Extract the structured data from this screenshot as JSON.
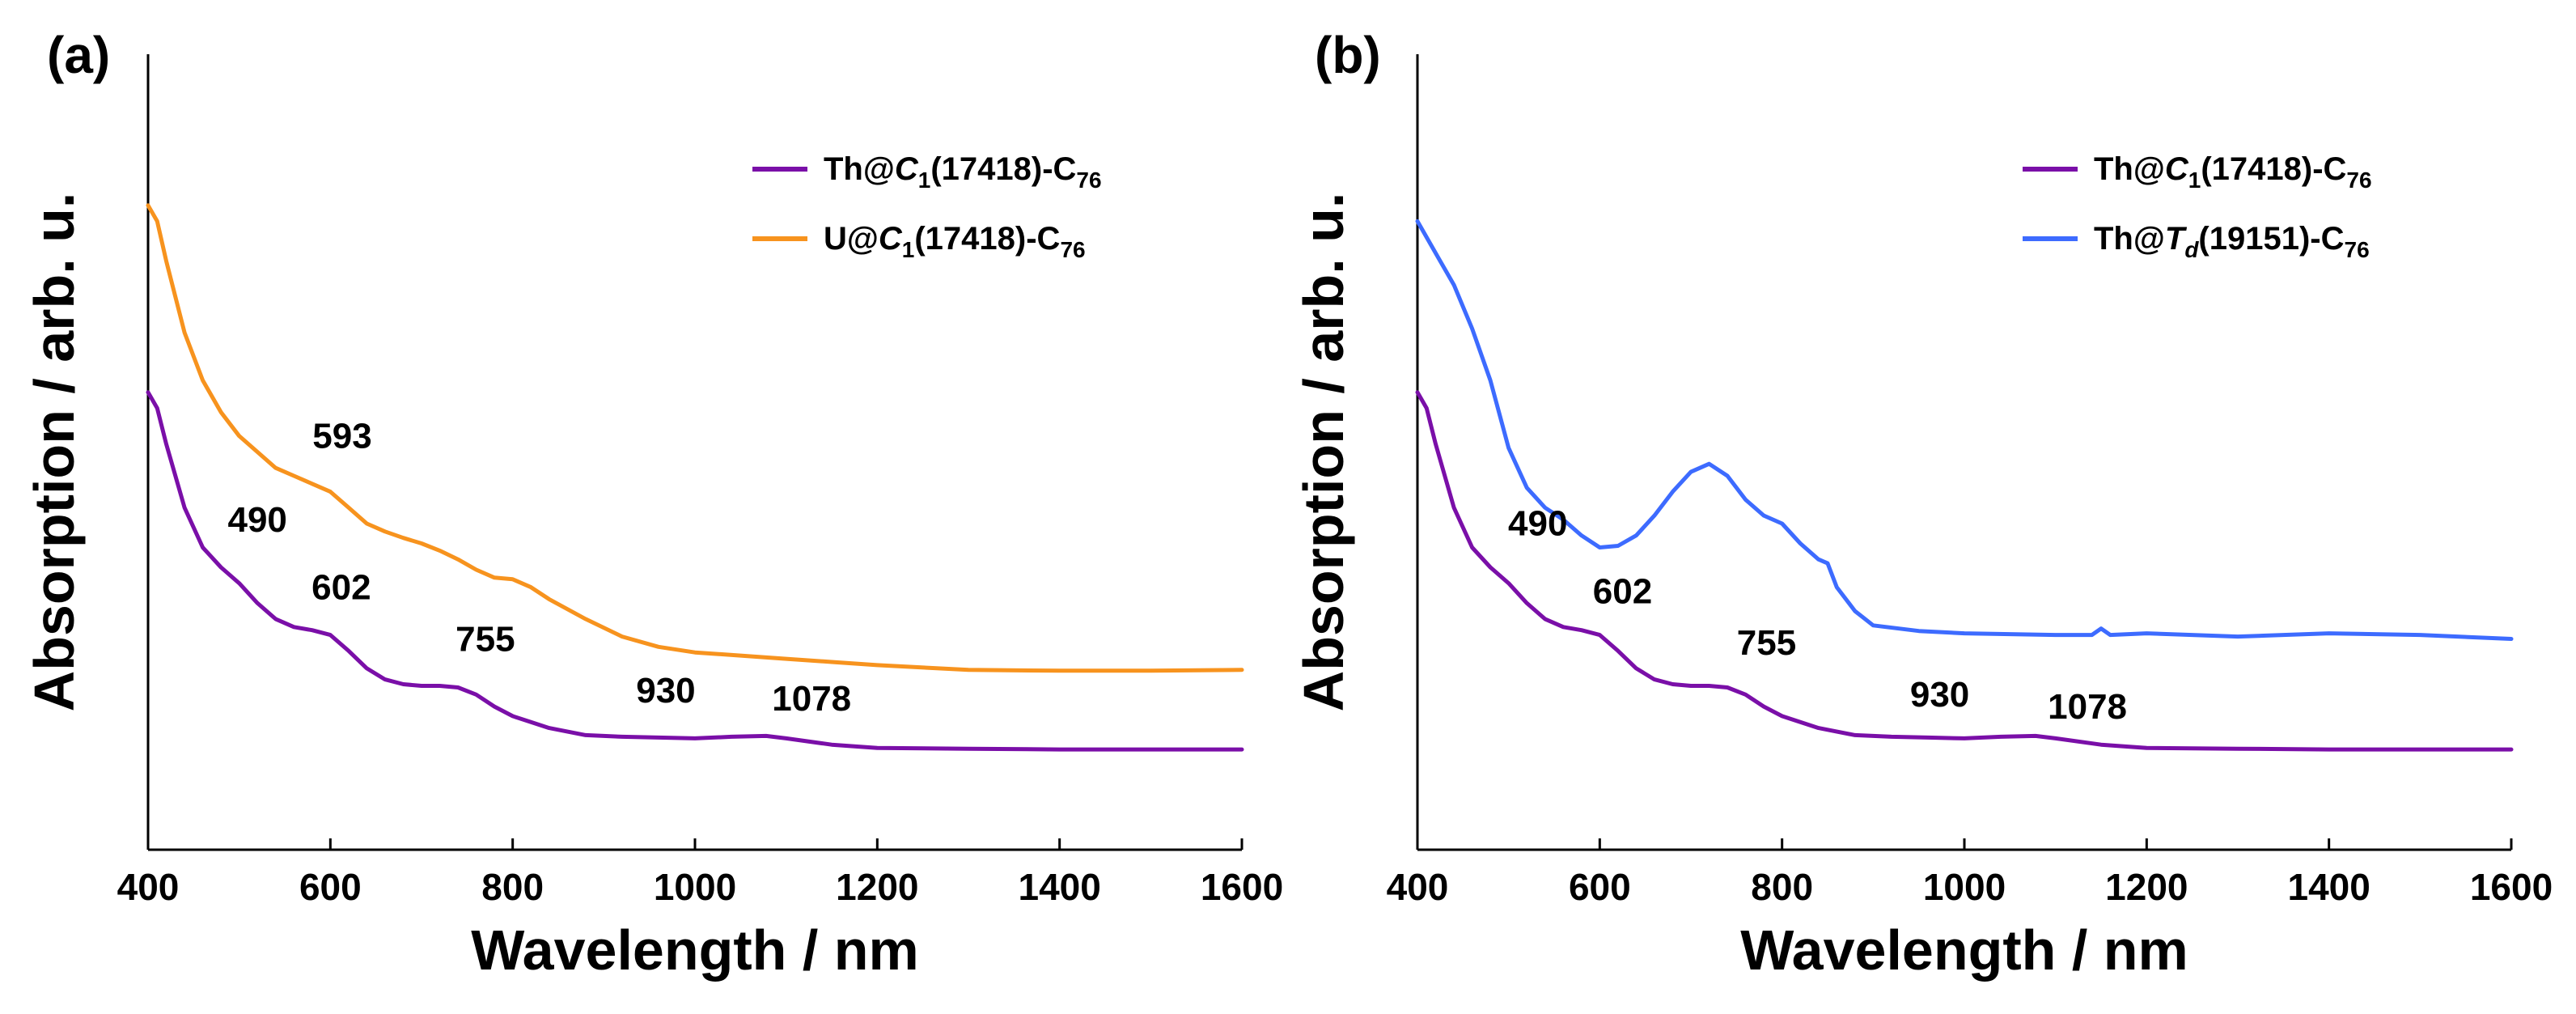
{
  "figure": {
    "background": "#ffffff"
  },
  "chart_data": [
    {
      "type": "line",
      "panel_label": "(a)",
      "xlabel": "Wavelength / nm",
      "ylabel": "Absorption / arb. u.",
      "xlim": [
        400,
        1600
      ],
      "ylim": [
        0,
        1
      ],
      "xticks": [
        400,
        600,
        800,
        1000,
        1200,
        1400,
        1600
      ],
      "yticks_shown": false,
      "legend_position": "top-right",
      "series": [
        {
          "name": "Th@C1(17418)-C76",
          "legend_parts": {
            "pre": "Th@",
            "italic": "C",
            "sub1": "1",
            "mid": "(17418)-C",
            "sub2": "76"
          },
          "color": "#7a0fa8",
          "x": [
            400,
            410,
            420,
            440,
            460,
            480,
            500,
            520,
            540,
            560,
            580,
            600,
            620,
            640,
            660,
            680,
            700,
            720,
            740,
            760,
            780,
            800,
            840,
            880,
            920,
            960,
            1000,
            1040,
            1078,
            1100,
            1150,
            1200,
            1300,
            1400,
            1500,
            1600
          ],
          "y": [
            0.575,
            0.555,
            0.51,
            0.43,
            0.38,
            0.355,
            0.335,
            0.31,
            0.29,
            0.28,
            0.276,
            0.27,
            0.25,
            0.228,
            0.214,
            0.208,
            0.206,
            0.206,
            0.204,
            0.195,
            0.18,
            0.168,
            0.153,
            0.144,
            0.142,
            0.141,
            0.14,
            0.142,
            0.143,
            0.14,
            0.132,
            0.128,
            0.127,
            0.126,
            0.126,
            0.126
          ]
        },
        {
          "name": "U@C1(17418)-C76",
          "legend_parts": {
            "pre": "U@",
            "italic": "C",
            "sub1": "1",
            "mid": "(17418)-C",
            "sub2": "76"
          },
          "color": "#f7931e",
          "x": [
            400,
            410,
            420,
            440,
            460,
            480,
            500,
            520,
            540,
            560,
            580,
            600,
            620,
            640,
            660,
            680,
            700,
            720,
            740,
            760,
            780,
            800,
            820,
            840,
            880,
            920,
            960,
            1000,
            1050,
            1100,
            1150,
            1200,
            1300,
            1400,
            1500,
            1600
          ],
          "y": [
            0.81,
            0.79,
            0.74,
            0.65,
            0.59,
            0.55,
            0.52,
            0.5,
            0.48,
            0.47,
            0.46,
            0.45,
            0.43,
            0.41,
            0.4,
            0.392,
            0.385,
            0.376,
            0.365,
            0.352,
            0.342,
            0.34,
            0.33,
            0.315,
            0.29,
            0.268,
            0.255,
            0.248,
            0.244,
            0.24,
            0.236,
            0.232,
            0.226,
            0.225,
            0.225,
            0.226
          ]
        }
      ],
      "annotations": [
        {
          "text": "593",
          "x": 613,
          "y": 0.505
        },
        {
          "text": "490",
          "x": 520,
          "y": 0.4
        },
        {
          "text": "602",
          "x": 612,
          "y": 0.315
        },
        {
          "text": "755",
          "x": 770,
          "y": 0.25
        },
        {
          "text": "930",
          "x": 968,
          "y": 0.185
        },
        {
          "text": "1078",
          "x": 1128,
          "y": 0.175
        }
      ]
    },
    {
      "type": "line",
      "panel_label": "(b)",
      "xlabel": "Wavelength / nm",
      "ylabel": "Absorption / arb. u.",
      "xlim": [
        400,
        1600
      ],
      "ylim": [
        0,
        1
      ],
      "xticks": [
        400,
        600,
        800,
        1000,
        1200,
        1400,
        1600
      ],
      "yticks_shown": false,
      "legend_position": "top-right",
      "series": [
        {
          "name": "Th@C1(17418)-C76",
          "legend_parts": {
            "pre": "Th@",
            "italic": "C",
            "sub1": "1",
            "mid": "(17418)-C",
            "sub2": "76"
          },
          "color": "#7a0fa8",
          "x": [
            400,
            410,
            420,
            440,
            460,
            480,
            500,
            520,
            540,
            560,
            580,
            600,
            620,
            640,
            660,
            680,
            700,
            720,
            740,
            760,
            780,
            800,
            840,
            880,
            920,
            960,
            1000,
            1040,
            1078,
            1100,
            1150,
            1200,
            1300,
            1400,
            1500,
            1600
          ],
          "y": [
            0.575,
            0.555,
            0.51,
            0.43,
            0.38,
            0.355,
            0.335,
            0.31,
            0.29,
            0.28,
            0.276,
            0.27,
            0.25,
            0.228,
            0.214,
            0.208,
            0.206,
            0.206,
            0.204,
            0.195,
            0.18,
            0.168,
            0.153,
            0.144,
            0.142,
            0.141,
            0.14,
            0.142,
            0.143,
            0.14,
            0.132,
            0.128,
            0.127,
            0.126,
            0.126,
            0.126
          ]
        },
        {
          "name": "Th@Td(19151)-C76",
          "legend_parts": {
            "pre": "Th@",
            "italic": "T",
            "sub1": "d",
            "mid": "(19151)-C",
            "sub2": "76"
          },
          "color": "#3d6bff",
          "x": [
            400,
            420,
            440,
            460,
            480,
            500,
            520,
            540,
            560,
            580,
            600,
            620,
            640,
            660,
            680,
            700,
            720,
            740,
            760,
            780,
            800,
            820,
            840,
            850,
            860,
            880,
            900,
            950,
            1000,
            1100,
            1140,
            1150,
            1160,
            1200,
            1300,
            1400,
            1500,
            1600
          ],
          "y": [
            0.79,
            0.75,
            0.71,
            0.655,
            0.59,
            0.505,
            0.455,
            0.43,
            0.415,
            0.395,
            0.38,
            0.382,
            0.395,
            0.42,
            0.45,
            0.475,
            0.485,
            0.47,
            0.44,
            0.42,
            0.41,
            0.385,
            0.365,
            0.36,
            0.33,
            0.3,
            0.282,
            0.275,
            0.272,
            0.27,
            0.27,
            0.278,
            0.27,
            0.272,
            0.268,
            0.272,
            0.27,
            0.265
          ]
        }
      ],
      "annotations": [
        {
          "text": "490",
          "x": 532,
          "y": 0.395
        },
        {
          "text": "602",
          "x": 625,
          "y": 0.31
        },
        {
          "text": "755",
          "x": 783,
          "y": 0.245
        },
        {
          "text": "930",
          "x": 973,
          "y": 0.18
        },
        {
          "text": "1078",
          "x": 1135,
          "y": 0.165
        }
      ]
    }
  ]
}
